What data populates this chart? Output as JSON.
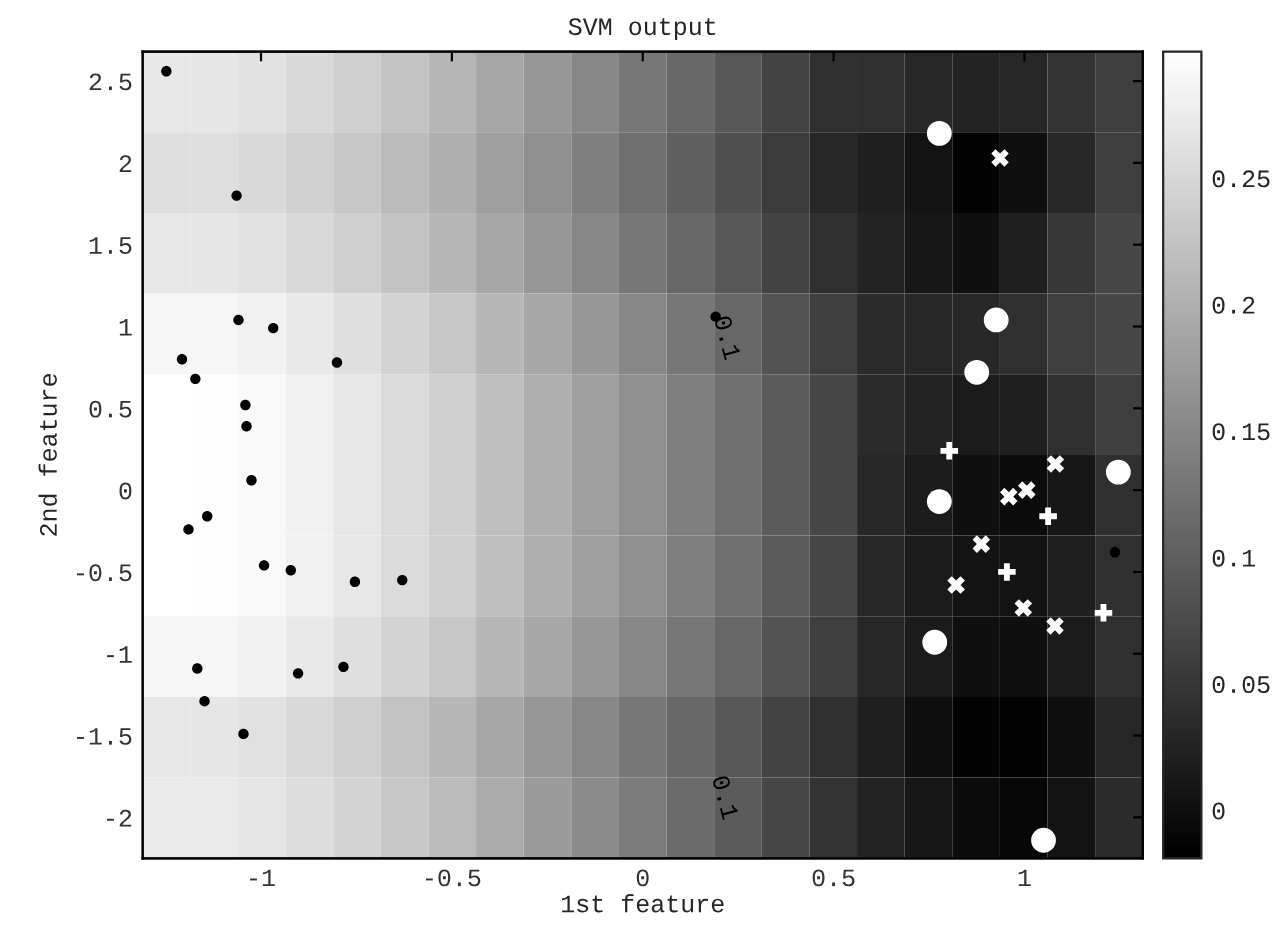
{
  "chart_data": [
    {
      "type": "scatter",
      "title": "SVM output",
      "xlabel": "1st feature",
      "ylabel": "2nd feature",
      "xlim": [
        -1.31,
        1.31
      ],
      "ylim": [
        -2.25,
        2.68
      ],
      "xticks": [
        -1,
        -0.5,
        0,
        0.5,
        1
      ],
      "yticks": [
        -2,
        -1.5,
        -1,
        -0.5,
        0,
        0.5,
        1,
        1.5,
        2,
        2.5
      ],
      "series": [
        {
          "marker": "circle",
          "color": "#000000",
          "x": [
            -1.248,
            -1.064,
            -1.059,
            -0.968,
            -0.801,
            -1.207,
            -1.172,
            -1.041,
            -1.038,
            -1.025,
            -1.141,
            -1.19,
            -0.992,
            -0.922,
            -0.754,
            -0.63,
            -1.167,
            -0.903,
            -0.784,
            -1.148,
            -1.046,
            0.191,
            1.237
          ],
          "values": [
            2.56,
            1.8,
            1.04,
            0.99,
            0.78,
            0.8,
            0.68,
            0.52,
            0.39,
            0.06,
            -0.16,
            -0.24,
            -0.46,
            -0.49,
            -0.56,
            -0.55,
            -1.09,
            -1.12,
            -1.08,
            -1.29,
            -1.49,
            1.06,
            -0.38
          ]
        },
        {
          "marker": "circle",
          "color": "#ffffff",
          "x": [
            0.777,
            0.926,
            0.875,
            1.246,
            0.777,
            0.765,
            1.05
          ],
          "values": [
            2.18,
            1.04,
            0.72,
            0.11,
            -0.07,
            -0.93,
            -2.14
          ]
        },
        {
          "marker": "cross",
          "color": "#ffffff",
          "x": [
            0.936,
            1.081,
            1.006,
            0.959,
            0.887,
            0.821,
            0.997,
            1.08
          ],
          "values": [
            2.03,
            0.16,
            0.0,
            -0.04,
            -0.33,
            -0.58,
            -0.72,
            -0.83
          ]
        },
        {
          "marker": "plus",
          "color": "#ffffff",
          "x": [
            0.803,
            1.062,
            0.954,
            1.207
          ],
          "values": [
            0.24,
            -0.16,
            -0.5,
            -0.75
          ]
        }
      ]
    },
    {
      "type": "heatmap",
      "annotations": [
        "0.1",
        "0.1"
      ],
      "categories": [
        null,
        null,
        null,
        null,
        null,
        null,
        null,
        null,
        null,
        null,
        null,
        null,
        null,
        null,
        null,
        null,
        null,
        null,
        null,
        null,
        null
      ],
      "y_categories": [
        null,
        null,
        null,
        null,
        null,
        null,
        null,
        null,
        null,
        null
      ],
      "clim": [
        -0.019,
        0.3
      ],
      "cticks": [
        0,
        0.05,
        0.1,
        0.15,
        0.2,
        0.25
      ],
      "cells": [
        [
          0.27,
          0.268,
          0.262,
          0.252,
          0.24,
          0.225,
          0.21,
          0.19,
          0.17,
          0.15,
          0.13,
          0.11,
          0.09,
          0.065,
          0.04,
          0.04,
          0.03,
          0.025,
          0.03,
          0.045,
          0.06
        ],
        [
          0.26,
          0.258,
          0.252,
          0.242,
          0.23,
          0.215,
          0.2,
          0.18,
          0.16,
          0.14,
          0.12,
          0.1,
          0.08,
          0.055,
          0.03,
          0.02,
          0.005,
          -0.015,
          0.0,
          0.03,
          0.06
        ],
        [
          0.27,
          0.268,
          0.262,
          0.252,
          0.24,
          0.225,
          0.21,
          0.19,
          0.17,
          0.15,
          0.13,
          0.11,
          0.09,
          0.065,
          0.04,
          0.025,
          0.01,
          0.0,
          0.02,
          0.05,
          0.07
        ],
        [
          0.29,
          0.288,
          0.282,
          0.272,
          0.26,
          0.245,
          0.23,
          0.21,
          0.19,
          0.17,
          0.15,
          0.13,
          0.11,
          0.085,
          0.06,
          0.035,
          0.03,
          0.03,
          0.04,
          0.06,
          0.07
        ],
        [
          0.3,
          0.298,
          0.292,
          0.282,
          0.27,
          0.255,
          0.24,
          0.22,
          0.2,
          0.18,
          0.16,
          0.14,
          0.12,
          0.095,
          0.07,
          0.035,
          0.025,
          0.015,
          0.02,
          0.04,
          0.06
        ],
        [
          0.3,
          0.298,
          0.292,
          0.282,
          0.27,
          0.255,
          0.24,
          0.22,
          0.2,
          0.18,
          0.16,
          0.14,
          0.12,
          0.095,
          0.07,
          0.03,
          0.015,
          0.0,
          -0.005,
          0.01,
          0.04
        ],
        [
          0.3,
          0.298,
          0.292,
          0.282,
          0.27,
          0.255,
          0.24,
          0.22,
          0.2,
          0.18,
          0.16,
          0.14,
          0.12,
          0.095,
          0.07,
          0.03,
          0.015,
          0.005,
          0.005,
          0.02,
          0.04
        ],
        [
          0.29,
          0.288,
          0.282,
          0.272,
          0.26,
          0.245,
          0.23,
          0.21,
          0.19,
          0.17,
          0.15,
          0.13,
          0.11,
          0.085,
          0.06,
          0.03,
          0.015,
          0.0,
          0.0,
          0.015,
          0.04
        ],
        [
          0.27,
          0.268,
          0.262,
          0.252,
          0.24,
          0.225,
          0.21,
          0.19,
          0.17,
          0.15,
          0.13,
          0.11,
          0.09,
          0.065,
          0.04,
          0.02,
          0.0,
          -0.015,
          -0.015,
          0.0,
          0.03
        ],
        [
          0.275,
          0.273,
          0.267,
          0.257,
          0.245,
          0.23,
          0.215,
          0.195,
          0.175,
          0.155,
          0.135,
          0.115,
          0.095,
          0.07,
          0.045,
          0.025,
          0.01,
          -0.005,
          -0.01,
          0.005,
          0.035
        ]
      ]
    }
  ]
}
